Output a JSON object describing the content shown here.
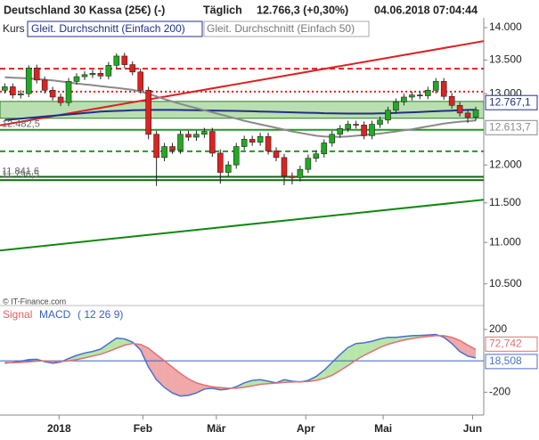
{
  "header": {
    "instrument": "Deutschland 30 Kassa (25€) (-)",
    "period": "Täglich",
    "quote": "12.766,3 (+0,30%)",
    "timestamp": "04.06.2018 07:04:44",
    "copyright": "© IT-Finance.com"
  },
  "chart_data": [
    {
      "type": "candlestick",
      "name": "Kurs",
      "log": true,
      "up_color": "#22aa22",
      "down_color": "#dd2222",
      "xlim": [
        -0.6,
        60
      ],
      "ylim": [
        10330,
        14127
      ],
      "yticks": [
        {
          "value": 10500,
          "label": "10.500"
        },
        {
          "value": 11000,
          "label": "11.000"
        },
        {
          "value": 11500,
          "label": "11.500"
        },
        {
          "value": 12000,
          "label": "12.000"
        },
        {
          "value": 13000,
          "label": "13.000"
        },
        {
          "value": 13500,
          "label": "13.500"
        },
        {
          "value": 14000,
          "label": "14.000"
        }
      ],
      "open": [
        13050,
        13100,
        12980,
        13000,
        13380,
        13200,
        13050,
        12950,
        12870,
        13180,
        13250,
        13280,
        13300,
        13260,
        13420,
        13560,
        13430,
        13320,
        13050,
        12420,
        12100,
        12250,
        12200,
        12420,
        12380,
        12420,
        12460,
        12160,
        11900,
        12000,
        12250,
        12350,
        12310,
        12390,
        12190,
        12100,
        11850,
        11830,
        11940,
        12090,
        12150,
        12300,
        12420,
        12500,
        12560,
        12550,
        12400,
        12560,
        12620,
        12760,
        12880,
        12950,
        12980,
        12970,
        13050,
        13180,
        12960,
        12830,
        12720,
        12660
      ],
      "high": [
        13150,
        13150,
        13050,
        13420,
        13430,
        13250,
        13100,
        13000,
        13230,
        13300,
        13330,
        13350,
        13350,
        13470,
        13600,
        13610,
        13480,
        13370,
        13100,
        12470,
        12300,
        12300,
        12470,
        12470,
        12470,
        12510,
        12510,
        12210,
        12050,
        12300,
        12400,
        12400,
        12440,
        12440,
        12240,
        12150,
        11900,
        11990,
        12140,
        12200,
        12350,
        12470,
        12550,
        12610,
        12610,
        12600,
        12610,
        12670,
        12810,
        12930,
        13000,
        13030,
        13030,
        13100,
        13230,
        13230,
        13010,
        12880,
        12770,
        12810
      ],
      "low": [
        13000,
        12930,
        12930,
        12950,
        13150,
        13000,
        12900,
        12820,
        12820,
        13130,
        13200,
        13230,
        13210,
        13210,
        13370,
        13380,
        13270,
        13000,
        12350,
        11720,
        12050,
        12150,
        12150,
        12330,
        12330,
        12370,
        12110,
        11750,
        11850,
        11950,
        12200,
        12260,
        12260,
        12140,
        12050,
        11730,
        11740,
        11780,
        11890,
        12040,
        12100,
        12250,
        12370,
        12450,
        12500,
        12350,
        12350,
        12510,
        12570,
        12710,
        12830,
        12900,
        12920,
        12920,
        13000,
        12910,
        12780,
        12670,
        12580,
        12610
      ],
      "close": [
        13100,
        12980,
        13000,
        13380,
        13200,
        13050,
        12950,
        12870,
        13180,
        13250,
        13280,
        13300,
        13260,
        13420,
        13560,
        13430,
        13320,
        13050,
        12420,
        12100,
        12250,
        12200,
        12420,
        12380,
        12420,
        12460,
        12160,
        11900,
        12000,
        12250,
        12350,
        12310,
        12390,
        12190,
        12100,
        11850,
        11830,
        11940,
        12090,
        12150,
        12300,
        12420,
        12500,
        12560,
        12550,
        12400,
        12560,
        12620,
        12760,
        12880,
        12950,
        12980,
        12970,
        13050,
        13180,
        12960,
        12830,
        12720,
        12660,
        12766
      ],
      "lines": [
        {
          "name": "Gleit. Durchschnitt (Einfach 200)",
          "color": "#1f2f8a",
          "values": [
            12620,
            12630,
            12640,
            12650,
            12660,
            12670,
            12680,
            12690,
            12700,
            12710,
            12720,
            12730,
            12740,
            12745,
            12750,
            12755,
            12760,
            12762,
            12764,
            12765,
            12765,
            12764,
            12763,
            12762,
            12760,
            12758,
            12756,
            12754,
            12752,
            12750,
            12748,
            12745,
            12742,
            12739,
            12736,
            12733,
            12730,
            12727,
            12724,
            12721,
            12718,
            12716,
            12714,
            12713,
            12712,
            12712,
            12713,
            12715,
            12718,
            12722,
            12726,
            12730,
            12735,
            12740,
            12745,
            12750,
            12755,
            12760,
            12764,
            12767.1
          ],
          "value_labels": [
            null,
            null,
            null,
            null,
            null,
            null,
            null,
            null,
            null,
            null,
            null,
            null,
            null,
            null,
            null,
            null,
            null,
            null,
            null,
            null,
            null,
            null,
            null,
            null,
            null,
            null,
            null,
            null,
            null,
            null,
            null,
            null,
            null,
            null,
            null,
            null,
            null,
            null,
            null,
            null,
            null,
            null,
            null,
            null,
            null,
            null,
            null,
            null,
            null,
            null,
            null,
            null,
            null,
            null,
            null,
            null,
            null,
            null,
            null,
            "12.767,1"
          ]
        },
        {
          "name": "Gleit. Durchschnitt (Einfach 50)",
          "color": "#8a8a8a",
          "values": [
            13240,
            13235,
            13230,
            13225,
            13215,
            13205,
            13195,
            13180,
            13165,
            13150,
            13135,
            13125,
            13110,
            13095,
            13085,
            13070,
            13055,
            13030,
            12995,
            12960,
            12920,
            12885,
            12850,
            12820,
            12790,
            12760,
            12730,
            12700,
            12670,
            12640,
            12610,
            12585,
            12560,
            12535,
            12510,
            12485,
            12460,
            12440,
            12420,
            12400,
            12390,
            12385,
            12385,
            12390,
            12400,
            12410,
            12420,
            12430,
            12445,
            12460,
            12475,
            12490,
            12510,
            12530,
            12550,
            12570,
            12585,
            12597,
            12605,
            12613.7
          ],
          "value_labels": [
            null,
            null,
            null,
            null,
            null,
            null,
            null,
            null,
            null,
            null,
            null,
            null,
            null,
            null,
            null,
            null,
            null,
            null,
            null,
            null,
            null,
            null,
            null,
            null,
            null,
            null,
            null,
            null,
            null,
            null,
            null,
            null,
            null,
            null,
            null,
            null,
            null,
            null,
            null,
            null,
            null,
            null,
            null,
            null,
            null,
            null,
            null,
            null,
            null,
            null,
            null,
            null,
            null,
            null,
            null,
            null,
            null,
            null,
            null,
            "12.613,7"
          ]
        }
      ],
      "band": {
        "from": 12645,
        "to": 12887,
        "color": "#b9dfb0"
      },
      "levels": [
        {
          "value": 13370,
          "color": "#e02020",
          "style": "dashed"
        },
        {
          "value": 13030,
          "color": "#e02020",
          "style": "dotted"
        },
        {
          "value": 12482.5,
          "color": "#229922",
          "style": "solid",
          "label": "12.482,5"
        },
        {
          "value": 12185,
          "color": "#229922",
          "style": "dashed"
        },
        {
          "value": 11841.6,
          "color": "#116611",
          "style": "solid",
          "label": "11.841,6"
        },
        {
          "value": 11796.5,
          "color": "#116611",
          "style": "solid",
          "label": "11.796,5"
        }
      ],
      "trendlines": [
        {
          "x": [
            -0.6,
            60
          ],
          "y": [
            12545,
            13790
          ],
          "color": "#e02020"
        },
        {
          "x": [
            -0.6,
            60
          ],
          "y": [
            10901,
            11540
          ],
          "color": "#118811"
        }
      ]
    },
    {
      "type": "line",
      "params": "( 12 26 9)",
      "xlim": [
        -0.6,
        60
      ],
      "ylim": [
        -340,
        330
      ],
      "hline": 0,
      "yticks": [
        -200,
        200
      ],
      "xticks": [
        {
          "value": 6.8,
          "label": "2018"
        },
        {
          "value": 17.3,
          "label": "Feb"
        },
        {
          "value": 26.5,
          "label": "Mär"
        },
        {
          "value": 37.7,
          "label": "Apr"
        },
        {
          "value": 47.4,
          "label": "Mai"
        },
        {
          "value": 58.6,
          "label": "Jun"
        }
      ],
      "up_fill": "#b8e6a8",
      "down_fill": "#f0a8a8",
      "series": [
        {
          "name": "MACD",
          "color": "#4a6fd0",
          "values": [
            -15,
            -10,
            -2,
            8,
            10,
            -5,
            -15,
            -8,
            15,
            35,
            50,
            60,
            75,
            110,
            145,
            140,
            120,
            70,
            -40,
            -120,
            -170,
            -205,
            -225,
            -220,
            -205,
            -180,
            -175,
            -185,
            -180,
            -165,
            -140,
            -125,
            -120,
            -130,
            -140,
            -120,
            -130,
            -135,
            -125,
            -100,
            -60,
            -10,
            40,
            85,
            110,
            115,
            125,
            140,
            150,
            150,
            155,
            160,
            162,
            165,
            168,
            150,
            110,
            60,
            30,
            18.508
          ],
          "value_labels": [
            null,
            null,
            null,
            null,
            null,
            null,
            null,
            null,
            null,
            null,
            null,
            null,
            null,
            null,
            null,
            null,
            null,
            null,
            null,
            null,
            null,
            null,
            null,
            null,
            null,
            null,
            null,
            null,
            null,
            null,
            null,
            null,
            null,
            null,
            null,
            null,
            null,
            null,
            null,
            null,
            null,
            null,
            null,
            null,
            null,
            null,
            null,
            null,
            null,
            null,
            null,
            null,
            null,
            null,
            null,
            null,
            null,
            null,
            null,
            "18,508"
          ]
        },
        {
          "name": "Signal",
          "color": "#e07070",
          "values": [
            -10,
            -12,
            -10,
            -6,
            -2,
            0,
            -3,
            -5,
            0,
            8,
            18,
            30,
            42,
            60,
            80,
            100,
            110,
            105,
            80,
            40,
            0,
            -40,
            -80,
            -115,
            -140,
            -155,
            -165,
            -170,
            -175,
            -175,
            -168,
            -160,
            -150,
            -145,
            -142,
            -138,
            -135,
            -133,
            -132,
            -125,
            -112,
            -92,
            -62,
            -30,
            5,
            35,
            60,
            85,
            105,
            120,
            132,
            142,
            150,
            155,
            160,
            160,
            150,
            130,
            100,
            72.742
          ],
          "value_labels": [
            null,
            null,
            null,
            null,
            null,
            null,
            null,
            null,
            null,
            null,
            null,
            null,
            null,
            null,
            null,
            null,
            null,
            null,
            null,
            null,
            null,
            null,
            null,
            null,
            null,
            null,
            null,
            null,
            null,
            null,
            null,
            null,
            null,
            null,
            null,
            null,
            null,
            null,
            null,
            null,
            null,
            null,
            null,
            null,
            null,
            null,
            null,
            null,
            null,
            null,
            null,
            null,
            null,
            null,
            null,
            null,
            null,
            null,
            null,
            "72,742"
          ]
        }
      ]
    }
  ]
}
